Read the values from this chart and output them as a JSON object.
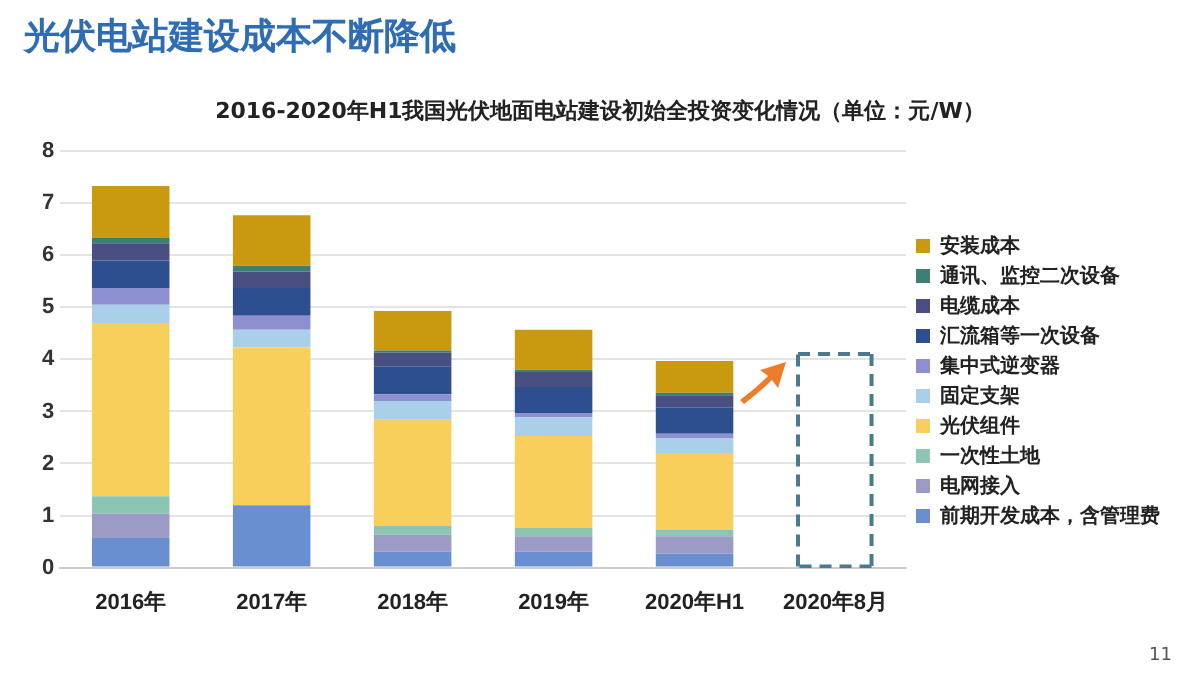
{
  "chart_data": {
    "type": "bar",
    "title": "光伏电站建设成本不断降低",
    "subtitle": "2016-2020年H1我国光伏地面电站建设初始全投资变化情况（单位：元/W）",
    "categories": [
      "2016年",
      "2017年",
      "2018年",
      "2019年",
      "2020年H1",
      "2020年8月"
    ],
    "stacked": true,
    "grid": "y",
    "legend": "right",
    "ylim": [
      0,
      8
    ],
    "yticks": [
      0,
      1,
      2,
      3,
      4,
      5,
      6,
      7,
      8
    ],
    "annotations": [
      "11"
    ],
    "series": [
      {
        "name": "前期开发成本，含管理费",
        "color": "#6a8fd0",
        "values": [
          0.57,
          1.2,
          0.31,
          0.31,
          0.27,
          null
        ]
      },
      {
        "name": "电网接入",
        "color": "#9b9bc5",
        "values": [
          0.47,
          0,
          0.32,
          0.29,
          0.33,
          null
        ]
      },
      {
        "name": "一次性土地",
        "color": "#8cc5b4",
        "values": [
          0.33,
          0,
          0.17,
          0.16,
          0.13,
          null
        ]
      },
      {
        "name": "光伏组件",
        "color": "#f7cf5a",
        "values": [
          3.33,
          3.03,
          2.04,
          1.77,
          1.47,
          null
        ]
      },
      {
        "name": "固定支架",
        "color": "#a9cfe9",
        "values": [
          0.35,
          0.34,
          0.36,
          0.36,
          0.29,
          null
        ]
      },
      {
        "name": "集中式逆变器",
        "color": "#8e8fd1",
        "values": [
          0.32,
          0.27,
          0.13,
          0.08,
          0.08,
          null
        ]
      },
      {
        "name": "汇流箱等一次设备",
        "color": "#2d4f8f",
        "values": [
          0.53,
          0.53,
          0.54,
          0.5,
          0.5,
          null
        ]
      },
      {
        "name": "电缆成本",
        "color": "#4a4f82",
        "values": [
          0.33,
          0.32,
          0.26,
          0.29,
          0.24,
          null
        ]
      },
      {
        "name": "通讯、监控二次设备",
        "color": "#3c7f73",
        "values": [
          0.1,
          0.11,
          0.04,
          0.04,
          0.05,
          null
        ]
      },
      {
        "name": "安装成本",
        "color": "#c99a10",
        "values": [
          1.0,
          0.97,
          0.76,
          0.77,
          0.61,
          null
        ]
      }
    ]
  }
}
